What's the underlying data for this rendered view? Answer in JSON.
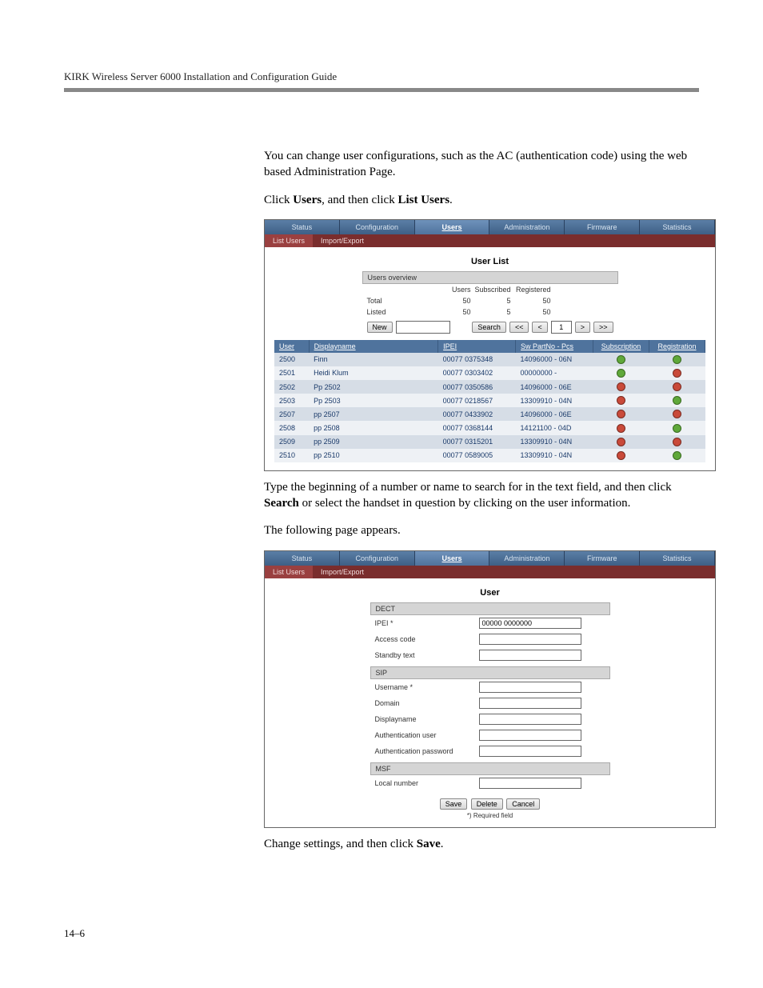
{
  "header": "KIRK Wireless Server 6000 Installation and Configuration Guide",
  "para1a": "You can change user configurations, such as the AC (authentication code) using the web based Administration Page.",
  "para2_pre": "Click ",
  "para2_b1": "Users",
  "para2_mid": ", and then click ",
  "para2_b2": "List Users",
  "para2_post": ".",
  "para3": "Type the beginning of a number or name to search for in the text field, and then click ",
  "para3_b": "Search",
  "para3_post": " or select the handset in question by clicking on the user information.",
  "para4": "The following page appears.",
  "para5_pre": "Change settings, and then click ",
  "para5_b": "Save",
  "para5_post": ".",
  "pagenum": "14–6",
  "screenshot1": {
    "tabs": [
      "Status",
      "Configuration",
      "Users",
      "Administration",
      "Firmware",
      "Statistics"
    ],
    "activeTab": 2,
    "subtabs": [
      "List Users",
      "Import/Export"
    ],
    "activeSubtab": 0,
    "title": "User List",
    "overviewHead": "Users overview",
    "ovCols": [
      "",
      "Users",
      "Subscribed",
      "Registered"
    ],
    "ovRows": [
      {
        "label": "Total",
        "vals": [
          "50",
          "5",
          "50"
        ]
      },
      {
        "label": "Listed",
        "vals": [
          "50",
          "5",
          "50"
        ]
      }
    ],
    "ctrl": {
      "new": "New",
      "search": "Search",
      "first": "<<",
      "prev": "<",
      "page": "1",
      "next": ">",
      "last": ">>"
    },
    "columns": [
      "User",
      "Displayname",
      "IPEI",
      "Sw PartNo - Pcs",
      "Subscription",
      "Registration"
    ],
    "rows": [
      {
        "user": "2500",
        "name": "Finn",
        "ipei": "00077 0375348",
        "sw": "14096000 - 06N",
        "sub": "green",
        "reg": "green",
        "even": true
      },
      {
        "user": "2501",
        "name": "Heidi Klum",
        "ipei": "00077 0303402",
        "sw": "00000000 -",
        "sub": "green",
        "reg": "red",
        "even": false
      },
      {
        "user": "2502",
        "name": "Pp 2502",
        "ipei": "00077 0350586",
        "sw": "14096000 - 06E",
        "sub": "red",
        "reg": "red",
        "even": true
      },
      {
        "user": "2503",
        "name": "Pp 2503",
        "ipei": "00077 0218567",
        "sw": "13309910 - 04N",
        "sub": "red",
        "reg": "green",
        "even": false
      },
      {
        "user": "2507",
        "name": "pp 2507",
        "ipei": "00077 0433902",
        "sw": "14096000 - 06E",
        "sub": "red",
        "reg": "red",
        "even": true
      },
      {
        "user": "2508",
        "name": "pp 2508",
        "ipei": "00077 0368144",
        "sw": "14121100 - 04D",
        "sub": "red",
        "reg": "green",
        "even": false
      },
      {
        "user": "2509",
        "name": "pp 2509",
        "ipei": "00077 0315201",
        "sw": "13309910 - 04N",
        "sub": "red",
        "reg": "red",
        "even": true
      },
      {
        "user": "2510",
        "name": "pp 2510",
        "ipei": "00077 0589005",
        "sw": "13309910 - 04N",
        "sub": "red",
        "reg": "green",
        "even": false
      }
    ]
  },
  "screenshot2": {
    "tabs": [
      "Status",
      "Configuration",
      "Users",
      "Administration",
      "Firmware",
      "Statistics"
    ],
    "activeTab": 2,
    "subtabs": [
      "List Users",
      "Import/Export"
    ],
    "activeSubtab": 0,
    "title": "User",
    "sections": [
      {
        "head": "DECT",
        "fields": [
          {
            "label": "IPEI *",
            "value": "00000 0000000"
          },
          {
            "label": "Access code",
            "value": ""
          },
          {
            "label": "Standby text",
            "value": ""
          }
        ]
      },
      {
        "head": "SIP",
        "fields": [
          {
            "label": "Username *",
            "value": ""
          },
          {
            "label": "Domain",
            "value": ""
          },
          {
            "label": "Displayname",
            "value": ""
          },
          {
            "label": "Authentication user",
            "value": ""
          },
          {
            "label": "Authentication password",
            "value": ""
          }
        ]
      },
      {
        "head": "MSF",
        "fields": [
          {
            "label": "Local number",
            "value": ""
          }
        ]
      }
    ],
    "buttons": {
      "save": "Save",
      "delete": "Delete",
      "cancel": "Cancel"
    },
    "reqnote": "*) Required field"
  },
  "colors": {
    "tabbg": "#4f739d",
    "subtab": "#7a2d2d",
    "rowEven": "#d6dde6",
    "rowOdd": "#eef1f5"
  }
}
